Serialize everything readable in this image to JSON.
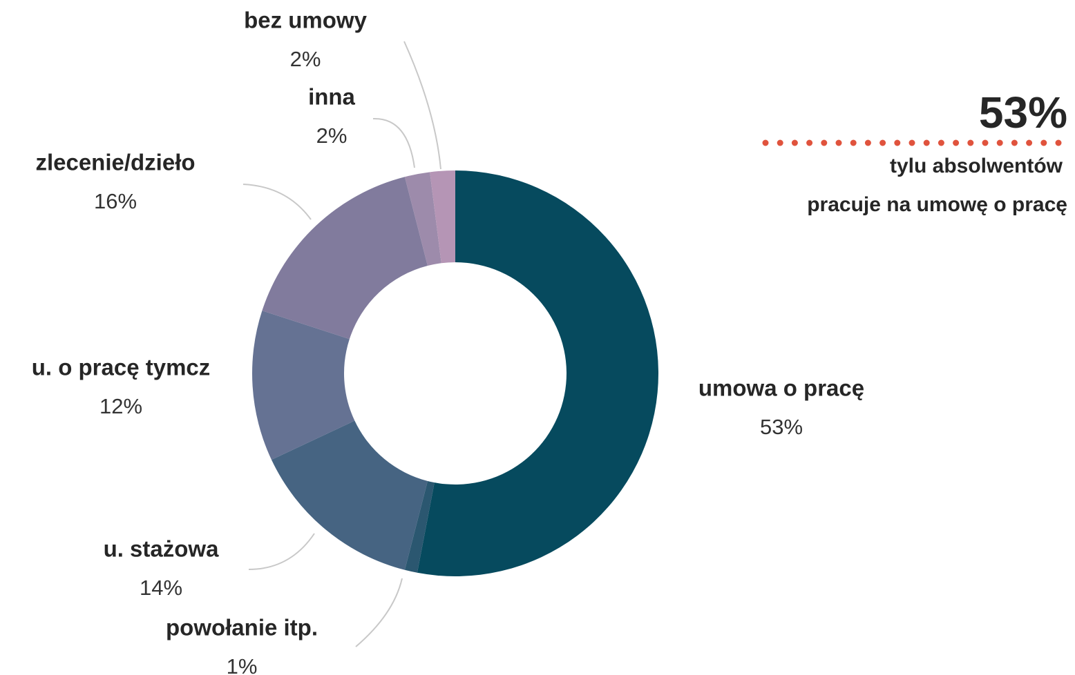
{
  "chart_data": {
    "type": "donut",
    "categories": [
      "umowa o pracę",
      "powołanie itp.",
      "u. stażowa",
      "u. o pracę tymcz",
      "zlecenie/dzieło",
      "inna",
      "bez umowy"
    ],
    "values": [
      53,
      1,
      14,
      12,
      16,
      2,
      2
    ],
    "value_labels": [
      "53%",
      "1%",
      "14%",
      "12%",
      "16%",
      "2%",
      "2%"
    ],
    "colors": [
      "#064a5e",
      "#2b5770",
      "#466482",
      "#657293",
      "#817b9d",
      "#9d8bab",
      "#b595b5"
    ],
    "callout": {
      "value": "53%",
      "lines": [
        "tylu absolwentów",
        "pracuje na umowę o pracę"
      ],
      "color": "#e0533d"
    }
  }
}
